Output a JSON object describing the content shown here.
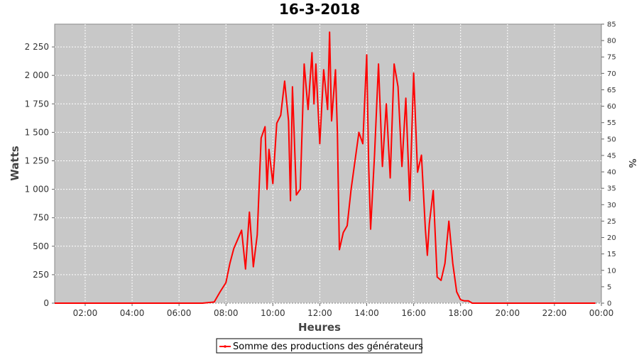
{
  "chart_data": {
    "type": "line",
    "title": "16-3-2018",
    "xlabel": "Heures",
    "ylabel": "Watts",
    "y2label": "%",
    "xlim": [
      "00:42",
      "00:00"
    ],
    "ylim": [
      0,
      2450
    ],
    "y2lim": [
      0,
      85
    ],
    "grid": true,
    "legend_position": "bottom",
    "x_ticks": [
      "02:00",
      "04:00",
      "06:00",
      "08:00",
      "10:00",
      "12:00",
      "14:00",
      "16:00",
      "18:00",
      "20:00",
      "22:00",
      "00:00"
    ],
    "y_ticks": [
      "0",
      "250",
      "500",
      "750",
      "1 000",
      "1 250",
      "1 500",
      "1 750",
      "2 000",
      "2 250"
    ],
    "y2_ticks": [
      "0",
      "5",
      "10",
      "15",
      "20",
      "25",
      "30",
      "35",
      "40",
      "45",
      "50",
      "55",
      "60",
      "65",
      "70",
      "75",
      "80",
      "85"
    ],
    "colors": {
      "series": "#ff0000",
      "plot_bg": "#c8c8c8",
      "grid": "#ffffff"
    },
    "series": [
      {
        "name": "Somme des productions des  générateurs",
        "x": [
          "00:42",
          "07:00",
          "07:30",
          "07:45",
          "08:00",
          "08:10",
          "08:20",
          "08:30",
          "08:40",
          "08:50",
          "09:00",
          "09:10",
          "09:20",
          "09:30",
          "09:40",
          "09:45",
          "09:50",
          "10:00",
          "10:10",
          "10:20",
          "10:30",
          "10:40",
          "10:45",
          "10:50",
          "11:00",
          "11:10",
          "11:20",
          "11:30",
          "11:40",
          "11:45",
          "11:50",
          "12:00",
          "12:10",
          "12:20",
          "12:25",
          "12:30",
          "12:40",
          "12:45",
          "12:50",
          "13:00",
          "13:10",
          "13:20",
          "13:30",
          "13:40",
          "13:50",
          "14:00",
          "14:05",
          "14:10",
          "14:20",
          "14:30",
          "14:40",
          "14:50",
          "15:00",
          "15:10",
          "15:20",
          "15:30",
          "15:40",
          "15:50",
          "16:00",
          "16:10",
          "16:20",
          "16:30",
          "16:35",
          "16:40",
          "16:50",
          "17:00",
          "17:10",
          "17:20",
          "17:30",
          "17:40",
          "17:50",
          "18:00",
          "18:10",
          "18:20",
          "18:30",
          "23:45"
        ],
        "values": [
          0,
          0,
          10,
          100,
          180,
          350,
          480,
          560,
          640,
          300,
          800,
          320,
          600,
          1450,
          1550,
          1000,
          1350,
          1050,
          1580,
          1650,
          1950,
          1600,
          900,
          1900,
          950,
          1000,
          2100,
          1700,
          2200,
          1750,
          2100,
          1400,
          2050,
          1700,
          2380,
          1600,
          2050,
          1500,
          470,
          620,
          680,
          1000,
          1250,
          1500,
          1400,
          2180,
          1200,
          650,
          1300,
          2100,
          1200,
          1750,
          1100,
          2100,
          1900,
          1200,
          1800,
          900,
          2020,
          1150,
          1300,
          650,
          420,
          700,
          990,
          230,
          200,
          350,
          720,
          350,
          100,
          30,
          20,
          20,
          0,
          0
        ]
      }
    ]
  }
}
